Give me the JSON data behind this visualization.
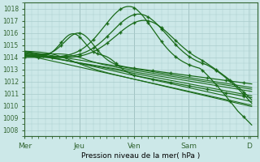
{
  "background_color": "#cce8e8",
  "grid_color": "#aacccc",
  "line_color": "#1a6b1a",
  "xlabel": "Pression niveau de la mer( hPa )",
  "ylim": [
    1007.5,
    1018.5
  ],
  "yticks": [
    1008,
    1009,
    1010,
    1011,
    1012,
    1013,
    1014,
    1015,
    1016,
    1017,
    1018
  ],
  "xtick_labels": [
    "Mer",
    "Jeu",
    "Ven",
    "Sam",
    "D"
  ],
  "xtick_pos": [
    0,
    1,
    2,
    3,
    4.1
  ],
  "xlim": [
    0,
    4.25
  ],
  "figsize": [
    3.2,
    2.0
  ],
  "dpi": 100
}
